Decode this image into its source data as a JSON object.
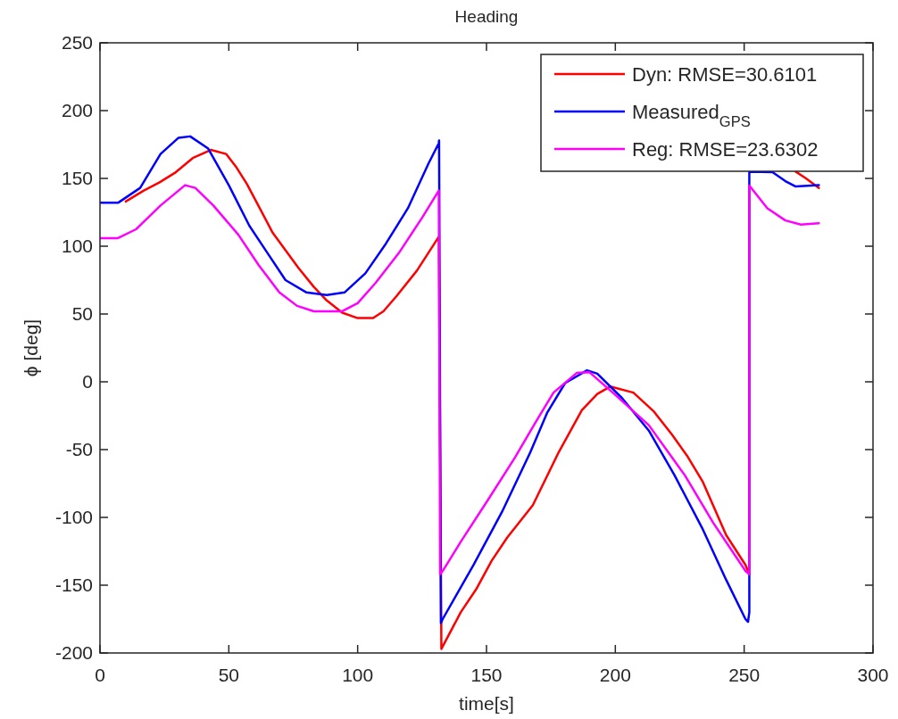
{
  "chart_data": {
    "type": "line",
    "title": "Heading",
    "xlabel": "time[s]",
    "ylabel": "ϕ [deg]",
    "xlim": [
      0,
      300
    ],
    "xticks": [
      0,
      50,
      100,
      150,
      200,
      250,
      300
    ],
    "ylim": [
      -200,
      250
    ],
    "yticks": [
      -200,
      -150,
      -100,
      -50,
      0,
      50,
      100,
      150,
      200,
      250
    ],
    "grid": false,
    "legend": "top right",
    "line_style": "solid",
    "marker": "none",
    "series": [
      {
        "name": "Dyn: RMSE=30.6101",
        "color": "#ff0000",
        "x": [
          10,
          17,
          23,
          29,
          36,
          43,
          49,
          53,
          57,
          62,
          67,
          72,
          77,
          83,
          88,
          94,
          100,
          106,
          110,
          115,
          123,
          131.5,
          132.5,
          140,
          146,
          152,
          158,
          168,
          178,
          187,
          193,
          198,
          207,
          215,
          222,
          228,
          234,
          243,
          250.5,
          252,
          null,
          270,
          274,
          279
        ],
        "values": [
          133,
          141,
          147,
          154,
          165,
          171,
          168,
          158,
          146,
          128,
          110,
          97,
          84,
          70,
          60,
          51,
          47,
          47,
          52,
          63,
          82,
          107,
          -197,
          -170,
          -153,
          -132,
          -115,
          -91,
          -52,
          -21,
          -9,
          -3.5,
          -8,
          -22,
          -39,
          -55,
          -74,
          -113,
          -135,
          -142,
          null,
          155,
          150,
          143
        ]
      },
      {
        "name": "Measured$_{GPS}$",
        "color": "#0000ff",
        "x": [
          0,
          7,
          15.6,
          23.5,
          30.5,
          35,
          42,
          50,
          58,
          65,
          72,
          80,
          88,
          95,
          103,
          111,
          119.5,
          127.5,
          131.5,
          131.6,
          132.3,
          133,
          145,
          156,
          167,
          173.5,
          180.5,
          189,
          193,
          202.6,
          213,
          223,
          234,
          243,
          250.5,
          251.5,
          252,
          252,
          261,
          266,
          270,
          279
        ],
        "values": [
          132,
          132,
          143,
          168,
          180,
          181,
          172,
          145,
          115,
          95,
          75,
          66,
          64,
          66,
          80,
          102,
          128,
          161,
          176,
          178,
          -178,
          -175,
          -135,
          -96,
          -52,
          -23,
          -1,
          8.5,
          6,
          -12,
          -36,
          -69,
          -109,
          -146,
          -175,
          -177,
          -170,
          155,
          154.6,
          148,
          144,
          145
        ]
      },
      {
        "name": "Reg: RMSE=23.6302",
        "color": "#ff00ff",
        "x": [
          0,
          7,
          14,
          23.5,
          33,
          37,
          44,
          53.7,
          61.6,
          69.6,
          76.5,
          83,
          94,
          100,
          107,
          116,
          125,
          131.5,
          132,
          133,
          140,
          150.6,
          161,
          169,
          176,
          185,
          190,
          199,
          213,
          227,
          238,
          250.5,
          252,
          252,
          259,
          266,
          272,
          279
        ],
        "values": [
          106,
          106,
          112.5,
          130,
          145,
          143,
          130,
          108.5,
          86,
          66,
          56,
          52,
          52,
          58,
          73,
          95,
          121,
          141,
          -142,
          -139.5,
          -118,
          -87,
          -56,
          -30,
          -8,
          6.5,
          7,
          -8,
          -32,
          -69,
          -104,
          -139.5,
          -142,
          144.7,
          128,
          119,
          116,
          117
        ]
      }
    ]
  }
}
